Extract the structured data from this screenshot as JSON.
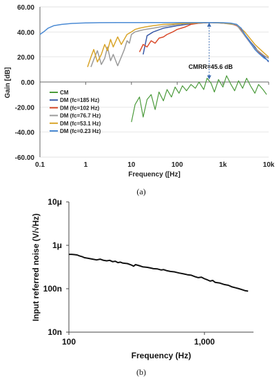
{
  "chart_data": [
    {
      "type": "line",
      "caption": "(a)",
      "xlabel": "Frequency ([Hz]",
      "ylabel": "Gain [dB]",
      "xscale": "log",
      "xlim": [
        0.1,
        10000
      ],
      "ylim": [
        -60,
        60
      ],
      "xticks": [
        "0.1",
        "1",
        "10",
        "100",
        "1k",
        "10k"
      ],
      "yticks": [
        "60.00",
        "40.00",
        "20.00",
        "0.00",
        "-20.00",
        "-40.00",
        "-60.00"
      ],
      "legend_position": "bottom-left",
      "annotation": "CMRR=45.6 dB",
      "annotation_x": 500,
      "annotation_from": 47.5,
      "annotation_to": 2,
      "series": [
        {
          "name": "CM",
          "color": "#4a9a3a",
          "x": [
            10,
            12,
            15,
            18,
            22,
            27,
            33,
            40,
            50,
            60,
            75,
            90,
            110,
            130,
            160,
            200,
            250,
            300,
            380,
            450,
            550,
            650,
            800,
            1000,
            1200,
            1500,
            1800,
            2200,
            2700,
            3300,
            4000,
            5000,
            6000,
            7500,
            9000
          ],
          "y": [
            -32,
            -18,
            -12,
            -28,
            -14,
            -10,
            -22,
            -8,
            -15,
            -6,
            -12,
            -4,
            -9,
            -3,
            -7,
            -2,
            -5,
            0,
            -6,
            3,
            -1,
            -8,
            2,
            -4,
            5,
            -2,
            -7,
            1,
            -5,
            3,
            -3,
            -9,
            -2,
            -6,
            -10
          ]
        },
        {
          "name": "DM (fc=185 Hz)",
          "color": "#3a5aa8",
          "x": [
            18,
            22,
            30,
            50,
            100,
            200,
            300,
            500,
            800,
            1000,
            1500,
            2000,
            2500,
            3000,
            4000,
            5000,
            6000,
            7000,
            8000,
            9000,
            10000
          ],
          "y": [
            22,
            37,
            40,
            43,
            45,
            46.5,
            47,
            47.5,
            47.3,
            47,
            46.5,
            45.5,
            43,
            38,
            32,
            28,
            24,
            22,
            20,
            18,
            16
          ]
        },
        {
          "name": "DM (fc=102 Hz)",
          "color": "#d94a2a",
          "x": [
            15,
            18,
            22,
            27,
            33,
            40,
            50,
            60,
            80,
            100,
            150,
            200,
            300,
            500,
            800,
            1000,
            1500,
            2000,
            2500,
            3000,
            4000,
            5000,
            6000,
            8000,
            10000
          ],
          "y": [
            24,
            30,
            28,
            33,
            31,
            35,
            36,
            38,
            40,
            42,
            44,
            46,
            47,
            47.5,
            47.3,
            47,
            46.5,
            45,
            42,
            37,
            31,
            27,
            24,
            21,
            19
          ]
        },
        {
          "name": "DM (fc=76.7 Hz)",
          "color": "#9a9a9a",
          "x": [
            1.3,
            1.5,
            1.8,
            2.2,
            2.6,
            3,
            3.5,
            4,
            5,
            6,
            7,
            8,
            9,
            10,
            12,
            15,
            20,
            30,
            50,
            100,
            200,
            500,
            1000,
            2000,
            3000,
            5000,
            8000,
            10000
          ],
          "y": [
            12,
            18,
            25,
            14,
            19,
            28,
            17,
            22,
            13,
            20,
            26,
            33,
            31,
            38,
            40,
            41,
            42,
            43,
            44.5,
            46,
            47,
            47.5,
            47,
            45.5,
            37,
            27,
            21,
            19
          ]
        },
        {
          "name": "DM (fc=53.1 Hz)",
          "color": "#d9a52a",
          "x": [
            1.1,
            1.3,
            1.5,
            1.8,
            2.2,
            2.6,
            3,
            3.5,
            4,
            5,
            6,
            8,
            10,
            12,
            15,
            20,
            30,
            50,
            100,
            200,
            500,
            1000,
            2000,
            3000,
            5000,
            8000,
            10000
          ],
          "y": [
            12,
            20,
            26,
            16,
            22,
            30,
            25,
            34,
            28,
            36,
            30,
            38,
            40,
            42,
            43,
            44,
            45,
            46,
            46.5,
            47,
            47.5,
            47.2,
            46,
            40,
            30,
            23,
            20
          ]
        },
        {
          "name": "DM (fc=0.23 Hz)",
          "color": "#4a8ad4",
          "x": [
            0.1,
            0.12,
            0.15,
            0.2,
            0.3,
            0.5,
            1,
            2,
            5,
            10,
            20,
            50,
            100,
            200,
            500,
            1000,
            1500,
            2000,
            2500,
            3000,
            4000,
            5000,
            6000,
            8000,
            10000
          ],
          "y": [
            38,
            40,
            43,
            45,
            46,
            46.8,
            47.2,
            47.4,
            47.5,
            47.5,
            47.5,
            47.5,
            47.5,
            47.5,
            47.5,
            47.4,
            47,
            46,
            43,
            38,
            31,
            26,
            23,
            19,
            17
          ]
        }
      ]
    },
    {
      "type": "line",
      "caption": "(b)",
      "xlabel": "Frequency (Hz)",
      "ylabel": "Input referred noise (V/√Hz)",
      "xscale": "log",
      "yscale": "log",
      "xlim": [
        100,
        2200
      ],
      "ylim": [
        1e-08,
        1e-05
      ],
      "xticks": [
        "100",
        "1,000"
      ],
      "yticks": [
        "10μ",
        "1μ",
        "100n",
        "10n"
      ],
      "series": [
        {
          "color": "#111111",
          "x": [
            100,
            105,
            110,
            115,
            120,
            125,
            130,
            140,
            150,
            160,
            170,
            180,
            190,
            200,
            210,
            220,
            230,
            240,
            250,
            270,
            290,
            300,
            310,
            330,
            350,
            380,
            400,
            420,
            450,
            480,
            500,
            530,
            560,
            600,
            650,
            700,
            750,
            800,
            850,
            900,
            950,
            1000,
            1050,
            1100,
            1150,
            1200,
            1300,
            1400,
            1500,
            1600,
            1700,
            1800,
            1900,
            2000,
            2100
          ],
          "y": [
            6.2e-07,
            6.2e-07,
            6.1e-07,
            6e-07,
            5.7e-07,
            5.5e-07,
            5.2e-07,
            5e-07,
            4.8e-07,
            4.6e-07,
            4.8e-07,
            4.5e-07,
            4.4e-07,
            4.5e-07,
            4.2e-07,
            4.3e-07,
            4e-07,
            4.1e-07,
            3.9e-07,
            3.8e-07,
            3.5e-07,
            3.3e-07,
            3.6e-07,
            3.4e-07,
            3.2e-07,
            3.1e-07,
            3e-07,
            2.9e-07,
            2.85e-07,
            2.7e-07,
            2.75e-07,
            2.6e-07,
            2.5e-07,
            2.45e-07,
            2.3e-07,
            2.2e-07,
            2.1e-07,
            2.05e-07,
            1.9e-07,
            1.8e-07,
            1.85e-07,
            1.7e-07,
            1.6e-07,
            1.5e-07,
            1.55e-07,
            1.4e-07,
            1.35e-07,
            1.25e-07,
            1.2e-07,
            1.1e-07,
            1.05e-07,
            1e-07,
            9.5e-08,
            9e-08,
            8.8e-08
          ]
        }
      ]
    }
  ]
}
